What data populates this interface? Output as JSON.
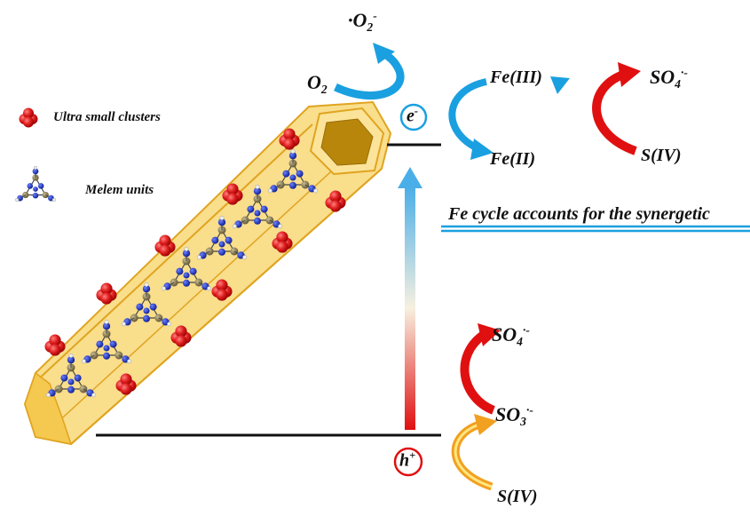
{
  "legend": {
    "clusters_label": "Ultra small clusters",
    "melem_label": "Melem units"
  },
  "species": {
    "superoxide": {
      "main": "·O",
      "sub": "2",
      "sup": "-"
    },
    "oxygen": {
      "main": "O",
      "sub": "2"
    },
    "electron": {
      "main": "e",
      "sup": "-"
    },
    "hole": {
      "main": "h",
      "sup": "+"
    },
    "fe3": "Fe(III)",
    "fe2": "Fe(II)",
    "so4_top": {
      "main": "SO",
      "sub": "4",
      "sup": "·-"
    },
    "s4_top": "S(IV)",
    "so4_bottom": {
      "main": "SO",
      "sub": "4",
      "sup": "·-"
    },
    "so3": {
      "main": "SO",
      "sub": "3",
      "sup": "·-"
    },
    "s4_bottom": "S(IV)"
  },
  "caption": "Fe cycle accounts for the synergetic",
  "colors": {
    "tube_fill": "#f7d36a",
    "tube_edge": "#e0a420",
    "cluster": "#e02020",
    "nitrogen": "#1e36c8",
    "carbon": "#8a7a4a",
    "hydrogen": "#e8e8e8",
    "blue_arrow": "#1aa0e0",
    "red_arrow": "#e01010",
    "orange_arrow": "#f2a020",
    "hex_fill": "#b8860b"
  }
}
